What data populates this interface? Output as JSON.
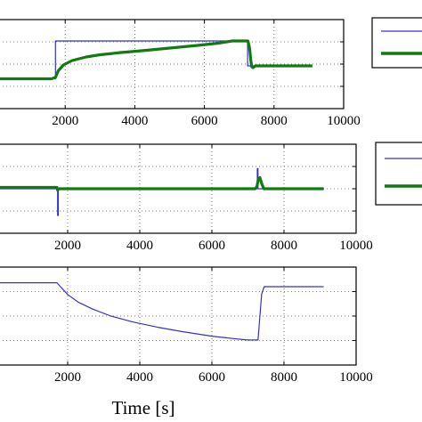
{
  "chart_data": [
    {
      "type": "line",
      "grid": true,
      "legend": "right",
      "xlim": [
        0,
        10000
      ],
      "ylim": [
        -1,
        1
      ],
      "x_ticks": [
        "2000",
        "4000",
        "6000",
        "8000",
        "10000"
      ],
      "series": [
        {
          "color": "#3333cc",
          "x": [
            0,
            1720,
            1720,
            7240,
            7240,
            7400,
            9100
          ],
          "y": [
            -0.33,
            -0.33,
            0.52,
            0.52,
            -0.04,
            -0.04,
            -0.04
          ]
        },
        {
          "color": "#117a11",
          "x": [
            0,
            1600,
            1720,
            1800,
            1950,
            2200,
            2600,
            3000,
            3600,
            4200,
            5000,
            5800,
            6400,
            6800,
            7150,
            7250,
            7300,
            7330,
            7360,
            7400,
            7460,
            7600,
            9100
          ],
          "y": [
            -0.33,
            -0.33,
            -0.3,
            -0.15,
            -0.02,
            0.08,
            0.16,
            0.21,
            0.26,
            0.3,
            0.36,
            0.42,
            0.47,
            0.52,
            0.52,
            0.52,
            0.35,
            0.1,
            -0.06,
            -0.08,
            -0.04,
            -0.04,
            -0.04
          ]
        }
      ]
    },
    {
      "type": "line",
      "grid": true,
      "legend": "right",
      "xlim": [
        0,
        10000
      ],
      "ylim": [
        -1,
        1
      ],
      "x_ticks": [
        "2000",
        "4000",
        "6000",
        "8000",
        "10000"
      ],
      "series": [
        {
          "color": "#3333cc",
          "x": [
            0,
            1720,
            1720,
            1740,
            1740,
            7260,
            7260,
            7280,
            7280,
            9100
          ],
          "y": [
            0.0,
            0.0,
            -0.6,
            -0.6,
            0.0,
            0.0,
            0.45,
            0.45,
            0.0,
            0.0
          ]
        },
        {
          "color": "#117a11",
          "x": [
            0,
            1700,
            1720,
            1760,
            7200,
            7250,
            7290,
            7330,
            7380,
            7440,
            9100
          ],
          "y": [
            0.03,
            0.03,
            -0.03,
            0.0,
            0.0,
            0.05,
            0.22,
            0.25,
            0.12,
            0.0,
            0.0
          ]
        }
      ]
    },
    {
      "type": "line",
      "grid": true,
      "legend": "none",
      "xlim": [
        0,
        10000
      ],
      "ylim": [
        -1,
        1
      ],
      "x_ticks": [
        "2000",
        "4000",
        "6000",
        "8000",
        "10000"
      ],
      "xlabel": "Time [s]",
      "series": [
        {
          "color": "#3333cc",
          "x": [
            0,
            1700,
            1800,
            2000,
            2300,
            2700,
            3200,
            3800,
            4500,
            5200,
            6000,
            6600,
            7000,
            7280,
            7320,
            7380,
            7450,
            9100
          ],
          "y": [
            0.68,
            0.68,
            0.6,
            0.44,
            0.28,
            0.14,
            0.0,
            -0.12,
            -0.23,
            -0.32,
            -0.41,
            -0.46,
            -0.49,
            -0.49,
            -0.1,
            0.45,
            0.6,
            0.6
          ]
        }
      ]
    }
  ]
}
